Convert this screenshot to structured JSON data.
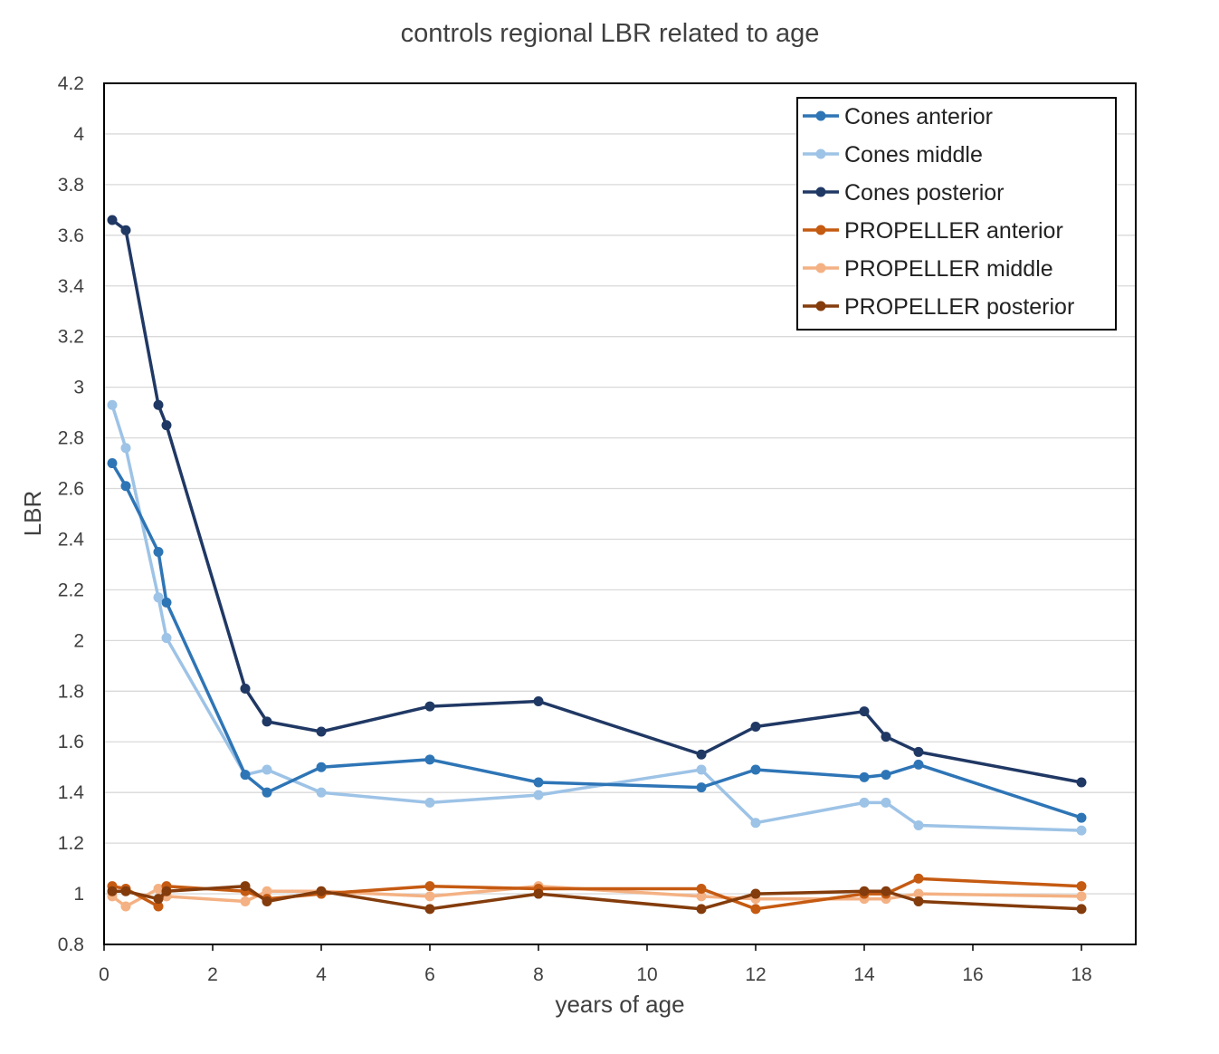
{
  "chart_data": {
    "type": "line",
    "title": "controls regional LBR related to age",
    "xlabel": "years of age",
    "ylabel": "LBR",
    "xlim": [
      0,
      19
    ],
    "ylim": [
      0.8,
      4.2
    ],
    "xticks": [
      0,
      2,
      4,
      6,
      8,
      10,
      12,
      14,
      16,
      18
    ],
    "yticks": [
      0.8,
      1,
      1.2,
      1.4,
      1.6,
      1.8,
      2,
      2.2,
      2.4,
      2.6,
      2.8,
      3,
      3.2,
      3.4,
      3.6,
      3.8,
      4,
      4.2
    ],
    "grid": true,
    "legend_position": "top-right",
    "series": [
      {
        "name": "Cones anterior",
        "color": "#2E75B6",
        "points": [
          [
            0.15,
            2.7
          ],
          [
            0.4,
            2.61
          ],
          [
            1.0,
            2.35
          ],
          [
            1.15,
            2.15
          ],
          [
            2.6,
            1.47
          ],
          [
            3.0,
            1.4
          ],
          [
            4.0,
            1.5
          ],
          [
            6.0,
            1.53
          ],
          [
            8.0,
            1.44
          ],
          [
            11.0,
            1.42
          ],
          [
            12.0,
            1.49
          ],
          [
            14.0,
            1.46
          ],
          [
            14.4,
            1.47
          ],
          [
            15.0,
            1.51
          ],
          [
            18.0,
            1.3
          ]
        ]
      },
      {
        "name": "Cones middle",
        "color": "#9DC3E6",
        "points": [
          [
            0.15,
            2.93
          ],
          [
            0.4,
            2.76
          ],
          [
            1.0,
            2.17
          ],
          [
            1.15,
            2.01
          ],
          [
            2.6,
            1.47
          ],
          [
            3.0,
            1.49
          ],
          [
            4.0,
            1.4
          ],
          [
            6.0,
            1.36
          ],
          [
            8.0,
            1.39
          ],
          [
            11.0,
            1.49
          ],
          [
            12.0,
            1.28
          ],
          [
            14.0,
            1.36
          ],
          [
            14.4,
            1.36
          ],
          [
            15.0,
            1.27
          ],
          [
            18.0,
            1.25
          ]
        ]
      },
      {
        "name": "Cones posterior",
        "color": "#203864",
        "points": [
          [
            0.15,
            3.66
          ],
          [
            0.4,
            3.62
          ],
          [
            1.0,
            2.93
          ],
          [
            1.15,
            2.85
          ],
          [
            2.6,
            1.81
          ],
          [
            3.0,
            1.68
          ],
          [
            4.0,
            1.64
          ],
          [
            6.0,
            1.74
          ],
          [
            8.0,
            1.76
          ],
          [
            11.0,
            1.55
          ],
          [
            12.0,
            1.66
          ],
          [
            14.0,
            1.72
          ],
          [
            14.4,
            1.62
          ],
          [
            15.0,
            1.56
          ],
          [
            18.0,
            1.44
          ]
        ]
      },
      {
        "name": "PROPELLER anterior",
        "color": "#C55A11",
        "points": [
          [
            0.15,
            1.03
          ],
          [
            0.4,
            1.02
          ],
          [
            1.0,
            0.95
          ],
          [
            1.15,
            1.03
          ],
          [
            2.6,
            1.01
          ],
          [
            3.0,
            0.98
          ],
          [
            4.0,
            1.0
          ],
          [
            6.0,
            1.03
          ],
          [
            8.0,
            1.02
          ],
          [
            11.0,
            1.02
          ],
          [
            12.0,
            0.94
          ],
          [
            14.0,
            1.0
          ],
          [
            14.4,
            1.0
          ],
          [
            15.0,
            1.06
          ],
          [
            18.0,
            1.03
          ]
        ]
      },
      {
        "name": "PROPELLER middle",
        "color": "#F4B183",
        "points": [
          [
            0.15,
            0.99
          ],
          [
            0.4,
            0.95
          ],
          [
            1.0,
            1.02
          ],
          [
            1.15,
            0.99
          ],
          [
            2.6,
            0.97
          ],
          [
            3.0,
            1.01
          ],
          [
            4.0,
            1.01
          ],
          [
            6.0,
            0.99
          ],
          [
            8.0,
            1.03
          ],
          [
            11.0,
            0.99
          ],
          [
            12.0,
            0.98
          ],
          [
            14.0,
            0.98
          ],
          [
            14.4,
            0.98
          ],
          [
            15.0,
            1.0
          ],
          [
            18.0,
            0.99
          ]
        ]
      },
      {
        "name": "PROPELLER posterior",
        "color": "#843C0C",
        "points": [
          [
            0.15,
            1.01
          ],
          [
            0.4,
            1.01
          ],
          [
            1.0,
            0.98
          ],
          [
            1.15,
            1.01
          ],
          [
            2.6,
            1.03
          ],
          [
            3.0,
            0.97
          ],
          [
            4.0,
            1.01
          ],
          [
            6.0,
            0.94
          ],
          [
            8.0,
            1.0
          ],
          [
            11.0,
            0.94
          ],
          [
            12.0,
            1.0
          ],
          [
            14.0,
            1.01
          ],
          [
            14.4,
            1.01
          ],
          [
            15.0,
            0.97
          ],
          [
            18.0,
            0.94
          ]
        ]
      }
    ]
  }
}
